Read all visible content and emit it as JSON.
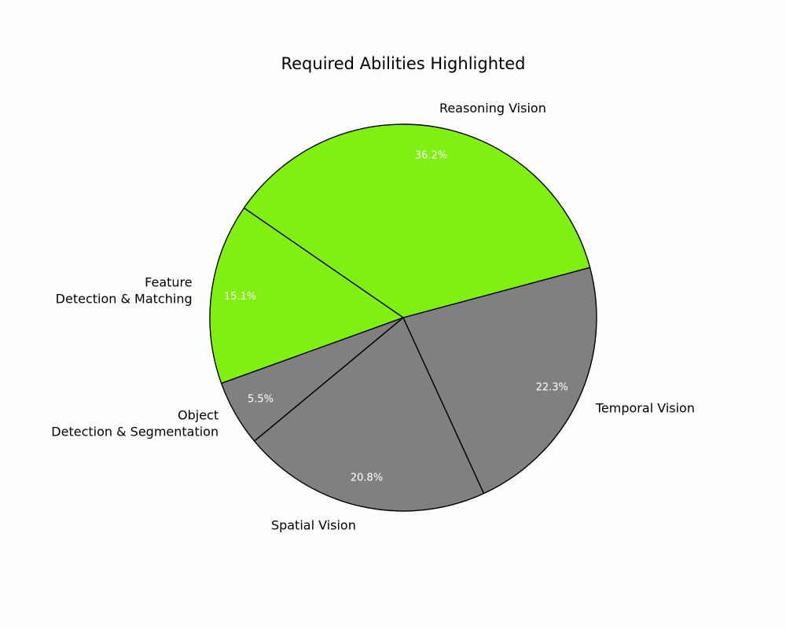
{
  "chart_data": {
    "type": "pie",
    "title": "Required Abilities Highlighted",
    "start_angle_deg": 15,
    "direction": "counterclockwise",
    "slices": [
      {
        "label_lines": [
          "Reasoning Vision"
        ],
        "value": 36.2,
        "pct_label": "36.2%",
        "color": "#80ef12"
      },
      {
        "label_lines": [
          "Feature",
          "Detection & Matching"
        ],
        "value": 15.1,
        "pct_label": "15.1%",
        "color": "#80ef12"
      },
      {
        "label_lines": [
          "Object",
          "Detection & Segmentation"
        ],
        "value": 5.5,
        "pct_label": "5.5%",
        "color": "#808080"
      },
      {
        "label_lines": [
          "Spatial Vision"
        ],
        "value": 20.8,
        "pct_label": "20.8%",
        "color": "#808080"
      },
      {
        "label_lines": [
          "Temporal Vision"
        ],
        "value": 22.3,
        "pct_label": "22.3%",
        "color": "#808080"
      }
    ],
    "edge_color": "#000000",
    "legend": "none",
    "grid": false
  }
}
